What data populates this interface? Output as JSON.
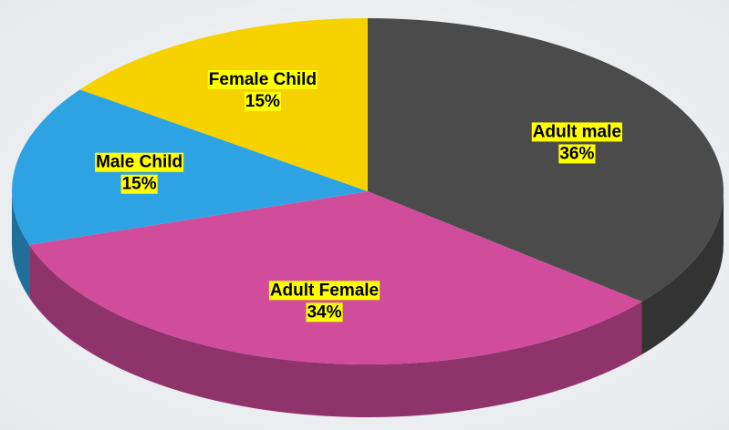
{
  "chart_data": {
    "type": "pie",
    "categories": [
      "Adult male",
      "Adult Female",
      "Male Child",
      "Female Child"
    ],
    "values": [
      36,
      34,
      15,
      15
    ],
    "value_labels": [
      "36%",
      "34%",
      "15%",
      "15%"
    ],
    "colors": [
      "#4b4b4b",
      "#d24c9c",
      "#2ea3e3",
      "#f6d200"
    ]
  }
}
